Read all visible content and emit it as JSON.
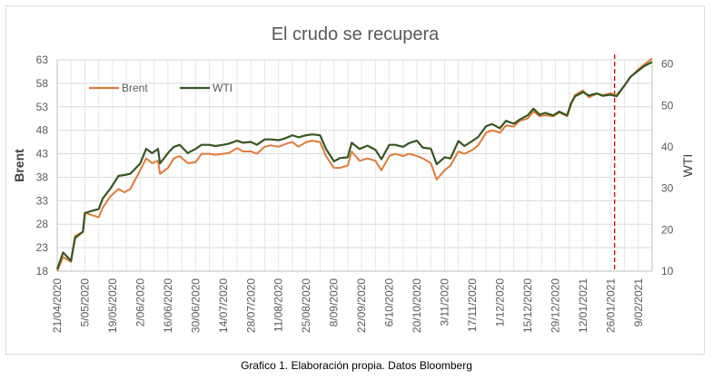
{
  "chart_data": {
    "type": "line",
    "title": "El crudo se recupera",
    "ylabel": "Brent",
    "y2label": "WTI",
    "ylim": [
      18,
      63
    ],
    "y2lim": [
      10,
      61
    ],
    "yticks": [
      "18",
      "23",
      "28",
      "33",
      "38",
      "43",
      "48",
      "53",
      "58",
      "63"
    ],
    "y2ticks": [
      "10",
      "20",
      "30",
      "40",
      "50",
      "60"
    ],
    "xlim": [
      "2020-04-21",
      "2021-02-16"
    ],
    "xtick_labels": [
      "21/04/2020",
      "5/05/2020",
      "19/05/2020",
      "2/06/2020",
      "16/06/2020",
      "30/06/2020",
      "14/07/2020",
      "28/07/2020",
      "11/08/2020",
      "25/08/2020",
      "8/09/2020",
      "22/09/2020",
      "6/10/2020",
      "20/10/2020",
      "3/11/2020",
      "17/11/2020",
      "1/12/2020",
      "15/12/2020",
      "29/12/2020",
      "12/01/2021",
      "26/01/2021",
      "9/02/2021"
    ],
    "grid": true,
    "legend_position": "top-left",
    "reference_line": {
      "x": "2021-01-28",
      "color": "#c00000",
      "style": "dashed"
    },
    "series": [
      {
        "name": "Brent",
        "axis": "left",
        "color": "#e07b39",
        "points": [
          [
            "2020-04-21",
            18.0
          ],
          [
            "2020-04-24",
            21.0
          ],
          [
            "2020-04-28",
            20.0
          ],
          [
            "2020-04-30",
            25.5
          ],
          [
            "2020-05-04",
            26.4
          ],
          [
            "2020-05-05",
            30.5
          ],
          [
            "2020-05-08",
            30.0
          ],
          [
            "2020-05-12",
            29.5
          ],
          [
            "2020-05-14",
            31.5
          ],
          [
            "2020-05-18",
            34.0
          ],
          [
            "2020-05-22",
            35.5
          ],
          [
            "2020-05-25",
            34.8
          ],
          [
            "2020-05-28",
            35.5
          ],
          [
            "2020-06-02",
            39.5
          ],
          [
            "2020-06-05",
            42.0
          ],
          [
            "2020-06-08",
            41.0
          ],
          [
            "2020-06-11",
            41.5
          ],
          [
            "2020-06-12",
            38.7
          ],
          [
            "2020-06-16",
            40.0
          ],
          [
            "2020-06-19",
            42.0
          ],
          [
            "2020-06-22",
            42.5
          ],
          [
            "2020-06-26",
            41.0
          ],
          [
            "2020-06-30",
            41.2
          ],
          [
            "2020-07-03",
            43.0
          ],
          [
            "2020-07-07",
            43.0
          ],
          [
            "2020-07-10",
            42.8
          ],
          [
            "2020-07-14",
            43.0
          ],
          [
            "2020-07-17",
            43.2
          ],
          [
            "2020-07-21",
            44.2
          ],
          [
            "2020-07-24",
            43.5
          ],
          [
            "2020-07-28",
            43.5
          ],
          [
            "2020-07-31",
            43.0
          ],
          [
            "2020-08-04",
            44.5
          ],
          [
            "2020-08-07",
            44.8
          ],
          [
            "2020-08-11",
            44.5
          ],
          [
            "2020-08-14",
            45.0
          ],
          [
            "2020-08-18",
            45.5
          ],
          [
            "2020-08-21",
            44.5
          ],
          [
            "2020-08-25",
            45.5
          ],
          [
            "2020-08-28",
            45.8
          ],
          [
            "2020-09-01",
            45.5
          ],
          [
            "2020-09-04",
            42.5
          ],
          [
            "2020-09-08",
            40.0
          ],
          [
            "2020-09-11",
            40.0
          ],
          [
            "2020-09-15",
            40.5
          ],
          [
            "2020-09-17",
            43.5
          ],
          [
            "2020-09-21",
            41.5
          ],
          [
            "2020-09-25",
            42.0
          ],
          [
            "2020-09-29",
            41.5
          ],
          [
            "2020-10-02",
            39.5
          ],
          [
            "2020-10-06",
            42.5
          ],
          [
            "2020-10-09",
            43.0
          ],
          [
            "2020-10-13",
            42.5
          ],
          [
            "2020-10-16",
            43.0
          ],
          [
            "2020-10-20",
            42.5
          ],
          [
            "2020-10-23",
            42.0
          ],
          [
            "2020-10-27",
            41.0
          ],
          [
            "2020-10-30",
            37.5
          ],
          [
            "2020-11-03",
            39.5
          ],
          [
            "2020-11-06",
            40.5
          ],
          [
            "2020-11-10",
            43.5
          ],
          [
            "2020-11-13",
            43.0
          ],
          [
            "2020-11-17",
            43.8
          ],
          [
            "2020-11-20",
            44.8
          ],
          [
            "2020-11-24",
            47.5
          ],
          [
            "2020-11-27",
            48.0
          ],
          [
            "2020-12-01",
            47.5
          ],
          [
            "2020-12-04",
            49.0
          ],
          [
            "2020-12-08",
            48.8
          ],
          [
            "2020-12-11",
            50.0
          ],
          [
            "2020-12-15",
            50.5
          ],
          [
            "2020-12-18",
            52.0
          ],
          [
            "2020-12-21",
            51.0
          ],
          [
            "2020-12-24",
            51.2
          ],
          [
            "2020-12-28",
            51.0
          ],
          [
            "2020-12-31",
            51.8
          ],
          [
            "2021-01-04",
            51.0
          ],
          [
            "2021-01-06",
            53.5
          ],
          [
            "2021-01-08",
            55.5
          ],
          [
            "2021-01-12",
            56.5
          ],
          [
            "2021-01-15",
            55.0
          ],
          [
            "2021-01-19",
            55.8
          ],
          [
            "2021-01-22",
            55.5
          ],
          [
            "2021-01-26",
            55.9
          ],
          [
            "2021-01-29",
            55.5
          ],
          [
            "2021-02-02",
            57.5
          ],
          [
            "2021-02-05",
            59.3
          ],
          [
            "2021-02-09",
            61.0
          ],
          [
            "2021-02-12",
            62.0
          ],
          [
            "2021-02-16",
            63.3
          ]
        ]
      },
      {
        "name": "WTI",
        "axis": "right",
        "color": "#375623",
        "points": [
          [
            "2020-04-21",
            10.5
          ],
          [
            "2020-04-24",
            14.5
          ],
          [
            "2020-04-28",
            12.5
          ],
          [
            "2020-04-30",
            18.0
          ],
          [
            "2020-05-04",
            19.5
          ],
          [
            "2020-05-05",
            24.0
          ],
          [
            "2020-05-08",
            24.5
          ],
          [
            "2020-05-12",
            25.0
          ],
          [
            "2020-05-14",
            27.5
          ],
          [
            "2020-05-18",
            30.0
          ],
          [
            "2020-05-22",
            33.0
          ],
          [
            "2020-05-25",
            33.2
          ],
          [
            "2020-05-28",
            33.5
          ],
          [
            "2020-06-02",
            36.0
          ],
          [
            "2020-06-05",
            39.5
          ],
          [
            "2020-06-08",
            38.5
          ],
          [
            "2020-06-11",
            39.5
          ],
          [
            "2020-06-12",
            36.0
          ],
          [
            "2020-06-16",
            38.5
          ],
          [
            "2020-06-19",
            40.0
          ],
          [
            "2020-06-22",
            40.5
          ],
          [
            "2020-06-26",
            38.5
          ],
          [
            "2020-06-30",
            39.5
          ],
          [
            "2020-07-03",
            40.5
          ],
          [
            "2020-07-07",
            40.5
          ],
          [
            "2020-07-10",
            40.2
          ],
          [
            "2020-07-14",
            40.5
          ],
          [
            "2020-07-17",
            40.8
          ],
          [
            "2020-07-21",
            41.5
          ],
          [
            "2020-07-24",
            41.0
          ],
          [
            "2020-07-28",
            41.2
          ],
          [
            "2020-07-31",
            40.5
          ],
          [
            "2020-08-04",
            41.8
          ],
          [
            "2020-08-07",
            41.8
          ],
          [
            "2020-08-11",
            41.6
          ],
          [
            "2020-08-14",
            42.0
          ],
          [
            "2020-08-18",
            42.8
          ],
          [
            "2020-08-21",
            42.3
          ],
          [
            "2020-08-25",
            42.8
          ],
          [
            "2020-08-28",
            43.0
          ],
          [
            "2020-09-01",
            42.8
          ],
          [
            "2020-09-04",
            39.5
          ],
          [
            "2020-09-08",
            36.5
          ],
          [
            "2020-09-11",
            37.3
          ],
          [
            "2020-09-15",
            37.5
          ],
          [
            "2020-09-17",
            41.0
          ],
          [
            "2020-09-21",
            39.5
          ],
          [
            "2020-09-25",
            40.3
          ],
          [
            "2020-09-29",
            39.3
          ],
          [
            "2020-10-02",
            37.0
          ],
          [
            "2020-10-06",
            40.5
          ],
          [
            "2020-10-09",
            40.5
          ],
          [
            "2020-10-13",
            40.0
          ],
          [
            "2020-10-16",
            40.9
          ],
          [
            "2020-10-20",
            41.5
          ],
          [
            "2020-10-23",
            39.8
          ],
          [
            "2020-10-27",
            39.6
          ],
          [
            "2020-10-30",
            35.8
          ],
          [
            "2020-11-03",
            37.5
          ],
          [
            "2020-11-06",
            37.2
          ],
          [
            "2020-11-10",
            41.4
          ],
          [
            "2020-11-13",
            40.2
          ],
          [
            "2020-11-17",
            41.4
          ],
          [
            "2020-11-20",
            42.4
          ],
          [
            "2020-11-24",
            45.0
          ],
          [
            "2020-11-27",
            45.5
          ],
          [
            "2020-12-01",
            44.5
          ],
          [
            "2020-12-04",
            46.3
          ],
          [
            "2020-12-08",
            45.6
          ],
          [
            "2020-12-11",
            46.6
          ],
          [
            "2020-12-15",
            47.6
          ],
          [
            "2020-12-18",
            49.2
          ],
          [
            "2020-12-21",
            47.8
          ],
          [
            "2020-12-24",
            48.2
          ],
          [
            "2020-12-28",
            47.6
          ],
          [
            "2020-12-31",
            48.5
          ],
          [
            "2021-01-04",
            47.6
          ],
          [
            "2021-01-06",
            50.6
          ],
          [
            "2021-01-08",
            52.2
          ],
          [
            "2021-01-12",
            53.2
          ],
          [
            "2021-01-15",
            52.4
          ],
          [
            "2021-01-19",
            52.9
          ],
          [
            "2021-01-22",
            52.3
          ],
          [
            "2021-01-26",
            52.6
          ],
          [
            "2021-01-29",
            52.2
          ],
          [
            "2021-02-02",
            54.8
          ],
          [
            "2021-02-05",
            56.9
          ],
          [
            "2021-02-09",
            58.4
          ],
          [
            "2021-02-12",
            59.5
          ],
          [
            "2021-02-16",
            60.5
          ]
        ]
      }
    ]
  },
  "caption": "Grafico 1. Elaboración propia. Datos Bloomberg"
}
